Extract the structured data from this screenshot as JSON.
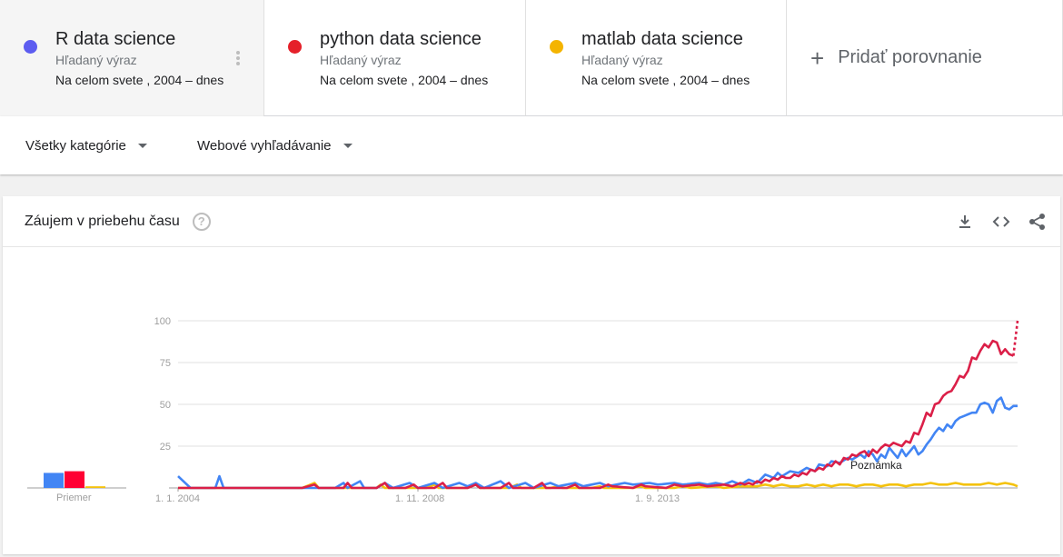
{
  "terms": [
    {
      "name": "R data science",
      "subtitle": "Hľadaný výraz",
      "scope": "Na celom svete , 2004 – dnes",
      "color": "#5c5cf0"
    },
    {
      "name": "python data science",
      "subtitle": "Hľadaný výraz",
      "scope": "Na celom svete , 2004 – dnes",
      "color": "#e5202a"
    },
    {
      "name": "matlab data science",
      "subtitle": "Hľadaný výraz",
      "scope": "Na celom svete , 2004 – dnes",
      "color": "#f4b400"
    }
  ],
  "add_comparison_label": "Pridať porovnanie",
  "filters": {
    "category": "Všetky kategórie",
    "search_type": "Webové vyhľadávanie"
  },
  "card": {
    "title": "Záujem v priebehu času",
    "help_icon": "help-icon",
    "tools": [
      "download-icon",
      "embed-code-icon",
      "share-icon"
    ]
  },
  "chart_data": {
    "type": "line",
    "title": "Záujem v priebehu času",
    "x_tick_labels": [
      "1. 1. 2004",
      "1. 11. 2008",
      "1. 9. 2013"
    ],
    "y_ticks": [
      25,
      50,
      75,
      100
    ],
    "ylim": [
      0,
      100
    ],
    "grid": true,
    "average_label": "Priemer",
    "note_label": "Poznámka",
    "partial_last_point_dotted": true,
    "averages": {
      "R": 9,
      "python": 10,
      "matlab": 1
    },
    "x_start": "2004-01",
    "x_end": "2019-01",
    "x_step": "month",
    "series": [
      {
        "name": "R data science",
        "color": "#4285f4",
        "keyframes": [
          [
            0,
            7
          ],
          [
            3,
            0
          ],
          [
            6,
            0
          ],
          [
            9,
            0
          ],
          [
            10,
            7
          ],
          [
            11,
            0
          ],
          [
            14,
            0
          ],
          [
            17,
            0
          ],
          [
            20,
            0
          ],
          [
            23,
            0
          ],
          [
            26,
            0
          ],
          [
            29,
            0
          ],
          [
            32,
            0
          ],
          [
            35,
            0
          ],
          [
            38,
            0
          ],
          [
            40,
            3
          ],
          [
            41,
            0
          ],
          [
            44,
            4
          ],
          [
            45,
            0
          ],
          [
            48,
            0
          ],
          [
            50,
            3
          ],
          [
            52,
            0
          ],
          [
            56,
            3
          ],
          [
            58,
            0
          ],
          [
            62,
            3
          ],
          [
            64,
            0
          ],
          [
            68,
            3
          ],
          [
            70,
            1
          ],
          [
            72,
            3
          ],
          [
            74,
            0
          ],
          [
            78,
            4
          ],
          [
            80,
            0
          ],
          [
            84,
            3
          ],
          [
            86,
            0
          ],
          [
            90,
            3
          ],
          [
            92,
            1
          ],
          [
            96,
            3
          ],
          [
            98,
            1
          ],
          [
            102,
            3
          ],
          [
            104,
            1
          ],
          [
            108,
            3
          ],
          [
            110,
            2
          ],
          [
            114,
            3
          ],
          [
            116,
            2
          ],
          [
            120,
            3
          ],
          [
            122,
            2
          ],
          [
            126,
            3
          ],
          [
            128,
            2
          ],
          [
            130,
            3
          ],
          [
            132,
            2
          ],
          [
            134,
            4
          ],
          [
            136,
            2
          ],
          [
            138,
            5
          ],
          [
            140,
            3
          ],
          [
            142,
            8
          ],
          [
            144,
            6
          ],
          [
            145,
            9
          ],
          [
            146,
            7
          ],
          [
            148,
            10
          ],
          [
            150,
            9
          ],
          [
            152,
            12
          ],
          [
            154,
            10
          ],
          [
            155,
            14
          ],
          [
            157,
            13
          ],
          [
            158,
            16
          ],
          [
            160,
            15
          ],
          [
            162,
            18
          ],
          [
            163,
            17
          ],
          [
            165,
            20
          ],
          [
            166,
            18
          ],
          [
            167,
            22
          ],
          [
            168,
            20
          ],
          [
            169,
            16
          ],
          [
            170,
            20
          ],
          [
            171,
            18
          ],
          [
            172,
            24
          ],
          [
            173,
            21
          ],
          [
            174,
            18
          ],
          [
            175,
            23
          ],
          [
            176,
            19
          ],
          [
            177,
            22
          ],
          [
            178,
            25
          ],
          [
            179,
            20
          ],
          [
            180,
            22
          ],
          [
            181,
            26
          ],
          [
            182,
            29
          ],
          [
            183,
            33
          ],
          [
            184,
            36
          ],
          [
            185,
            34
          ],
          [
            186,
            38
          ],
          [
            187,
            36
          ],
          [
            188,
            40
          ],
          [
            189,
            42
          ],
          [
            190,
            43
          ],
          [
            191,
            44
          ],
          [
            192,
            45
          ],
          [
            193,
            45
          ],
          [
            194,
            50
          ],
          [
            195,
            51
          ],
          [
            196,
            50
          ],
          [
            197,
            45
          ],
          [
            198,
            52
          ],
          [
            199,
            54
          ],
          [
            200,
            48
          ],
          [
            201,
            47
          ],
          [
            202,
            49
          ],
          [
            203,
            49
          ]
        ]
      },
      {
        "name": "python data science",
        "color": "#db1f48",
        "dotted_tail_from": 202,
        "keyframes": [
          [
            0,
            0
          ],
          [
            30,
            0
          ],
          [
            33,
            2
          ],
          [
            34,
            0
          ],
          [
            36,
            0
          ],
          [
            38,
            0
          ],
          [
            40,
            0
          ],
          [
            41,
            3
          ],
          [
            42,
            0
          ],
          [
            46,
            0
          ],
          [
            48,
            0
          ],
          [
            50,
            3
          ],
          [
            51,
            0
          ],
          [
            55,
            0
          ],
          [
            57,
            2
          ],
          [
            58,
            0
          ],
          [
            62,
            0
          ],
          [
            64,
            3
          ],
          [
            65,
            0
          ],
          [
            70,
            0
          ],
          [
            72,
            2
          ],
          [
            73,
            0
          ],
          [
            78,
            0
          ],
          [
            80,
            3
          ],
          [
            81,
            0
          ],
          [
            86,
            0
          ],
          [
            88,
            3
          ],
          [
            89,
            0
          ],
          [
            94,
            0
          ],
          [
            96,
            2
          ],
          [
            97,
            0
          ],
          [
            102,
            0
          ],
          [
            104,
            2
          ],
          [
            105,
            1
          ],
          [
            110,
            0
          ],
          [
            112,
            2
          ],
          [
            113,
            1
          ],
          [
            118,
            0
          ],
          [
            120,
            2
          ],
          [
            122,
            1
          ],
          [
            126,
            2
          ],
          [
            128,
            1
          ],
          [
            132,
            2
          ],
          [
            134,
            1
          ],
          [
            136,
            3
          ],
          [
            137,
            2
          ],
          [
            138,
            3
          ],
          [
            139,
            2
          ],
          [
            140,
            4
          ],
          [
            141,
            3
          ],
          [
            142,
            5
          ],
          [
            143,
            4
          ],
          [
            144,
            6
          ],
          [
            145,
            5
          ],
          [
            146,
            7
          ],
          [
            147,
            6
          ],
          [
            148,
            6
          ],
          [
            149,
            8
          ],
          [
            150,
            7
          ],
          [
            151,
            9
          ],
          [
            152,
            8
          ],
          [
            153,
            11
          ],
          [
            154,
            10
          ],
          [
            155,
            12
          ],
          [
            156,
            11
          ],
          [
            157,
            14
          ],
          [
            158,
            13
          ],
          [
            159,
            16
          ],
          [
            160,
            14
          ],
          [
            161,
            18
          ],
          [
            162,
            17
          ],
          [
            163,
            20
          ],
          [
            164,
            19
          ],
          [
            165,
            21
          ],
          [
            166,
            22
          ],
          [
            167,
            19
          ],
          [
            168,
            23
          ],
          [
            169,
            21
          ],
          [
            170,
            24
          ],
          [
            171,
            26
          ],
          [
            172,
            25
          ],
          [
            173,
            27
          ],
          [
            174,
            26
          ],
          [
            175,
            25
          ],
          [
            176,
            28
          ],
          [
            177,
            27
          ],
          [
            178,
            33
          ],
          [
            179,
            32
          ],
          [
            180,
            38
          ],
          [
            181,
            45
          ],
          [
            182,
            43
          ],
          [
            183,
            50
          ],
          [
            184,
            51
          ],
          [
            185,
            55
          ],
          [
            186,
            57
          ],
          [
            187,
            58
          ],
          [
            188,
            62
          ],
          [
            189,
            67
          ],
          [
            190,
            66
          ],
          [
            191,
            70
          ],
          [
            192,
            78
          ],
          [
            193,
            77
          ],
          [
            194,
            82
          ],
          [
            195,
            86
          ],
          [
            196,
            84
          ],
          [
            197,
            88
          ],
          [
            198,
            87
          ],
          [
            199,
            80
          ],
          [
            200,
            83
          ],
          [
            201,
            80
          ],
          [
            202,
            79
          ],
          [
            203,
            100
          ]
        ]
      },
      {
        "name": "matlab data science",
        "color": "#f4c20d",
        "keyframes": [
          [
            0,
            0
          ],
          [
            30,
            0
          ],
          [
            33,
            3
          ],
          [
            34,
            0
          ],
          [
            40,
            0
          ],
          [
            42,
            0
          ],
          [
            48,
            0
          ],
          [
            49,
            2
          ],
          [
            50,
            0
          ],
          [
            60,
            0
          ],
          [
            62,
            2
          ],
          [
            63,
            0
          ],
          [
            70,
            0
          ],
          [
            72,
            2
          ],
          [
            73,
            0
          ],
          [
            80,
            0
          ],
          [
            82,
            2
          ],
          [
            83,
            0
          ],
          [
            90,
            0
          ],
          [
            92,
            1
          ],
          [
            93,
            0
          ],
          [
            100,
            0
          ],
          [
            102,
            1
          ],
          [
            103,
            0
          ],
          [
            110,
            0
          ],
          [
            112,
            1
          ],
          [
            113,
            0
          ],
          [
            120,
            0
          ],
          [
            122,
            1
          ],
          [
            124,
            0
          ],
          [
            130,
            1
          ],
          [
            132,
            0
          ],
          [
            136,
            1
          ],
          [
            138,
            1
          ],
          [
            140,
            1
          ],
          [
            142,
            2
          ],
          [
            144,
            1
          ],
          [
            146,
            2
          ],
          [
            148,
            1
          ],
          [
            150,
            1
          ],
          [
            152,
            2
          ],
          [
            154,
            1
          ],
          [
            156,
            2
          ],
          [
            158,
            1
          ],
          [
            160,
            2
          ],
          [
            162,
            2
          ],
          [
            164,
            1
          ],
          [
            166,
            2
          ],
          [
            168,
            2
          ],
          [
            170,
            1
          ],
          [
            172,
            2
          ],
          [
            174,
            2
          ],
          [
            176,
            1
          ],
          [
            178,
            2
          ],
          [
            180,
            2
          ],
          [
            182,
            3
          ],
          [
            184,
            2
          ],
          [
            186,
            2
          ],
          [
            188,
            3
          ],
          [
            190,
            2
          ],
          [
            192,
            2
          ],
          [
            194,
            2
          ],
          [
            196,
            3
          ],
          [
            198,
            2
          ],
          [
            200,
            3
          ],
          [
            202,
            2
          ],
          [
            203,
            1
          ]
        ]
      }
    ]
  }
}
